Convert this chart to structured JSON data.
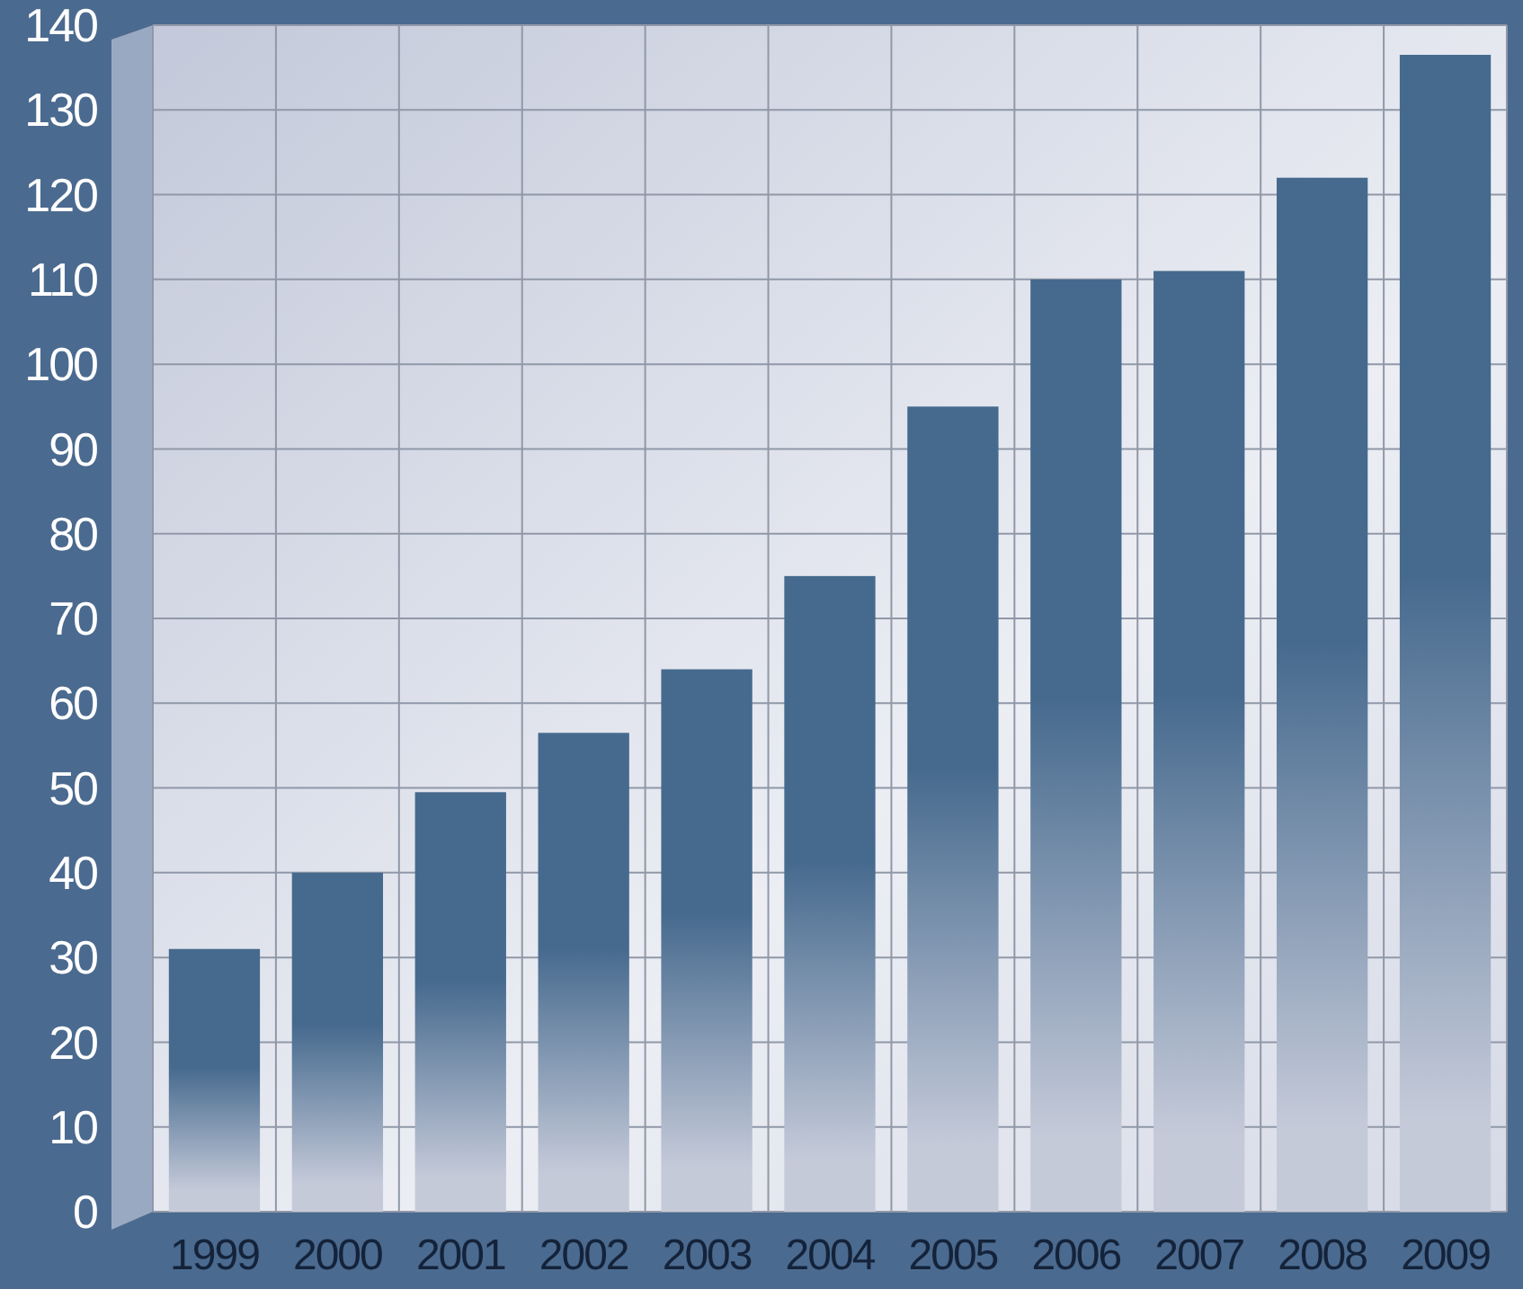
{
  "chart_data": {
    "type": "bar",
    "categories": [
      "1999",
      "2000",
      "2001",
      "2002",
      "2003",
      "2004",
      "2005",
      "2006",
      "2007",
      "2008",
      "2009"
    ],
    "values": [
      31,
      40,
      49.5,
      56.5,
      64,
      75,
      95,
      110,
      111,
      122,
      136.5
    ],
    "color": "#466a8e",
    "ylim": [
      0,
      140
    ],
    "yticks": [
      0,
      10,
      20,
      30,
      40,
      50,
      60,
      70,
      80,
      90,
      100,
      110,
      120,
      130,
      140
    ],
    "grid": true
  }
}
